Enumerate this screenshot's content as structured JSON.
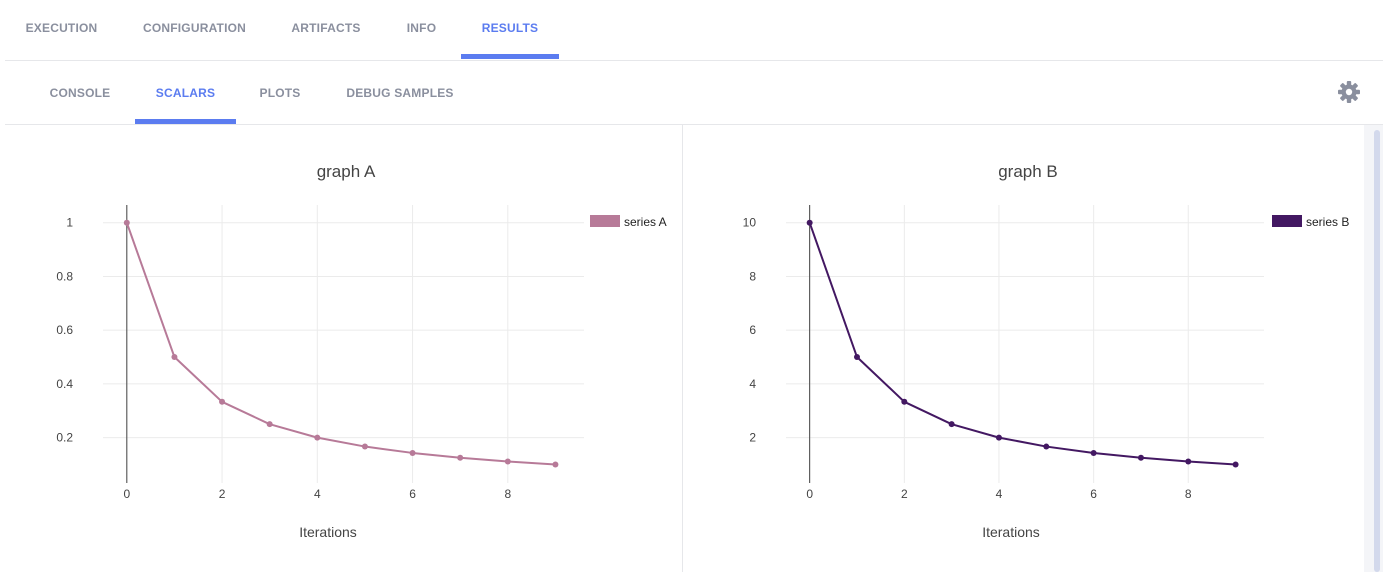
{
  "top_tabs": [
    {
      "label": "EXECUTION",
      "active": false
    },
    {
      "label": "CONFIGURATION",
      "active": false
    },
    {
      "label": "ARTIFACTS",
      "active": false
    },
    {
      "label": "INFO",
      "active": false
    },
    {
      "label": "RESULTS",
      "active": true
    }
  ],
  "sub_tabs": [
    {
      "label": "CONSOLE",
      "active": false
    },
    {
      "label": "SCALARS",
      "active": true
    },
    {
      "label": "PLOTS",
      "active": false
    },
    {
      "label": "DEBUG SAMPLES",
      "active": false
    }
  ],
  "toolbar": {
    "settings_icon": "gear-icon"
  },
  "colors": {
    "accent": "#5b7cf0",
    "tab_text": "#8a8f9e",
    "series_a": "#b77a98",
    "series_b": "#431862"
  },
  "chart_data": [
    {
      "type": "line",
      "title": "graph A",
      "xlabel": "Iterations",
      "ylabel": "",
      "x": [
        0,
        1,
        2,
        3,
        4,
        5,
        6,
        7,
        8,
        9
      ],
      "series": [
        {
          "name": "series A",
          "color": "#b77a98",
          "values": [
            1,
            0.5,
            0.3333,
            0.25,
            0.2,
            0.1667,
            0.1429,
            0.125,
            0.1111,
            0.1
          ]
        }
      ],
      "xlim": [
        -0.5,
        9.6
      ],
      "ylim": [
        0.031,
        1.066
      ],
      "xticks": [
        0,
        2,
        4,
        6,
        8
      ],
      "yticks": [
        0.2,
        0.4,
        0.6,
        0.8,
        1
      ],
      "ytick_labels": [
        "0.2",
        "0.4",
        "0.6",
        "0.8",
        "1"
      ],
      "grid": true,
      "legend": "top-right"
    },
    {
      "type": "line",
      "title": "graph B",
      "xlabel": "Iterations",
      "ylabel": "",
      "x": [
        0,
        1,
        2,
        3,
        4,
        5,
        6,
        7,
        8,
        9
      ],
      "series": [
        {
          "name": "series B",
          "color": "#431862",
          "values": [
            10,
            5,
            3.3333,
            2.5,
            2,
            1.6667,
            1.4286,
            1.25,
            1.1111,
            1
          ]
        }
      ],
      "xlim": [
        -0.5,
        9.6
      ],
      "ylim": [
        0.31,
        10.66
      ],
      "xticks": [
        0,
        2,
        4,
        6,
        8
      ],
      "yticks": [
        2,
        4,
        6,
        8,
        10
      ],
      "ytick_labels": [
        "2",
        "4",
        "6",
        "8",
        "10"
      ],
      "grid": true,
      "legend": "top-right"
    }
  ]
}
